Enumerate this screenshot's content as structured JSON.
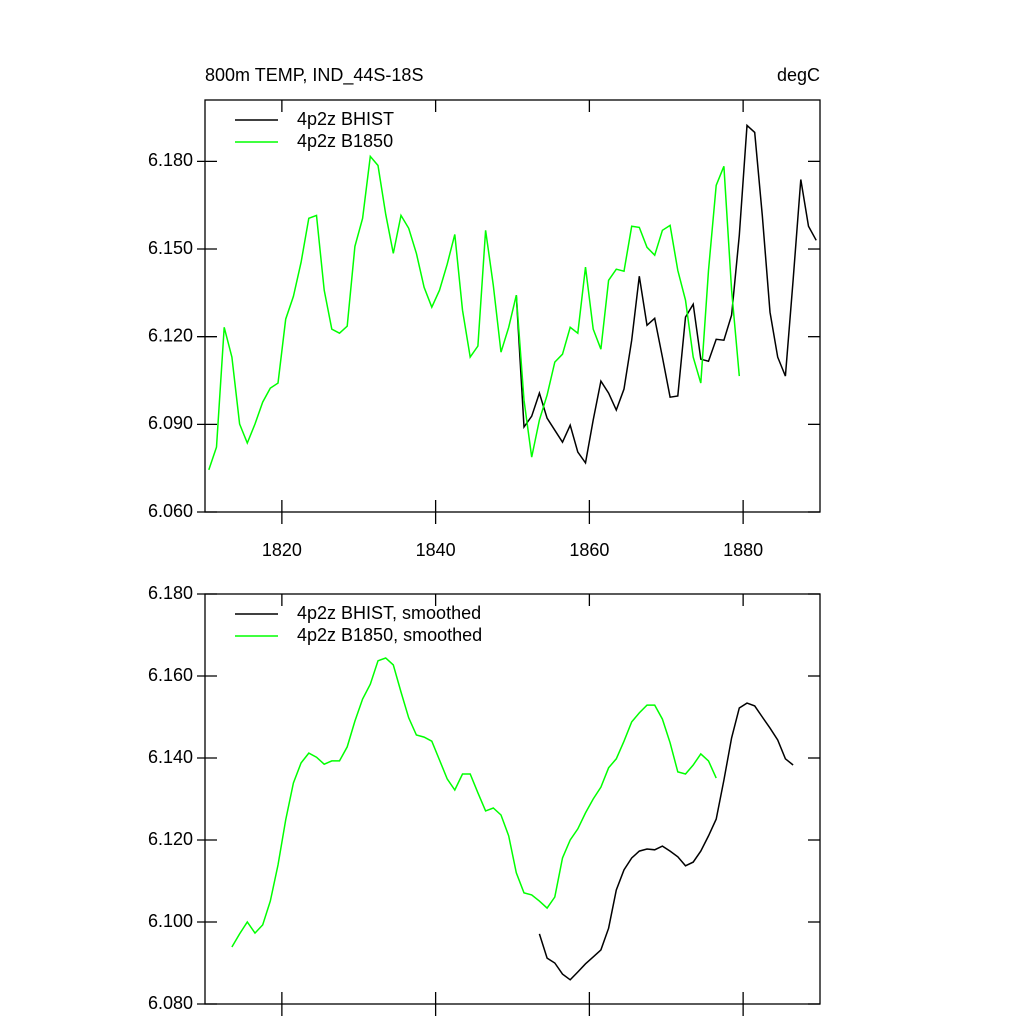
{
  "chart_data": [
    {
      "type": "line",
      "title": "800m TEMP, IND_44S-18S",
      "units": "degC",
      "xlim": [
        1810,
        1890
      ],
      "xticks": [
        1820,
        1840,
        1860,
        1880
      ],
      "ylim": [
        6.06,
        6.201
      ],
      "yticks": [
        {
          "value": 6.06,
          "label": "6.060"
        },
        {
          "value": 6.09,
          "label": "6.090"
        },
        {
          "value": 6.12,
          "label": "6.120"
        },
        {
          "value": 6.15,
          "label": "6.150"
        },
        {
          "value": 6.18,
          "label": "6.180"
        }
      ],
      "legend": "upper left",
      "series": [
        {
          "name": "4p2z BHIST",
          "color": "#000000",
          "x": [
            1850.5,
            1851.5,
            1852.5,
            1853.5,
            1854.5,
            1855.5,
            1856.5,
            1857.5,
            1858.5,
            1859.5,
            1860.5,
            1861.5,
            1862.5,
            1863.5,
            1864.5,
            1865.5,
            1866.5,
            1867.5,
            1868.5,
            1869.5,
            1870.5,
            1871.5,
            1872.5,
            1873.5,
            1874.5,
            1875.5,
            1876.5,
            1877.5,
            1878.5,
            1879.5,
            1880.5,
            1881.5,
            1882.5,
            1883.5,
            1884.5,
            1885.5,
            1886.5,
            1887.5,
            1888.5,
            1889.5
          ],
          "values": [
            6.1342,
            6.0891,
            6.0928,
            6.1007,
            6.0921,
            6.088,
            6.0839,
            6.0897,
            6.0805,
            6.0768,
            6.0915,
            6.1048,
            6.1007,
            6.0949,
            6.1021,
            6.1188,
            6.1407,
            6.1239,
            6.1263,
            6.113,
            6.0993,
            6.0997,
            6.1267,
            6.1311,
            6.1123,
            6.1116,
            6.1191,
            6.1188,
            6.1274,
            6.1547,
            6.1923,
            6.1899,
            6.1615,
            6.1284,
            6.113,
            6.1065,
            6.1393,
            6.1738,
            6.1578,
            6.153
          ]
        },
        {
          "name": "4p2z B1850",
          "color": "#00ff00",
          "x": [
            1810.5,
            1811.5,
            1812.5,
            1813.5,
            1814.5,
            1815.5,
            1816.5,
            1817.5,
            1818.5,
            1819.5,
            1820.5,
            1821.5,
            1822.5,
            1823.5,
            1824.5,
            1825.5,
            1826.5,
            1827.5,
            1828.5,
            1829.5,
            1830.5,
            1831.5,
            1832.5,
            1833.5,
            1834.5,
            1835.5,
            1836.5,
            1837.5,
            1838.5,
            1839.5,
            1840.5,
            1841.5,
            1842.5,
            1843.5,
            1844.5,
            1845.5,
            1846.5,
            1847.5,
            1848.5,
            1849.5,
            1850.5,
            1851.5,
            1852.5,
            1853.5,
            1854.5,
            1855.5,
            1856.5,
            1857.5,
            1858.5,
            1859.5,
            1860.5,
            1861.5,
            1862.5,
            1863.5,
            1864.5,
            1865.5,
            1866.5,
            1867.5,
            1868.5,
            1869.5,
            1870.5,
            1871.5,
            1872.5,
            1873.5,
            1874.5,
            1875.5,
            1876.5,
            1877.5,
            1878.5,
            1879.5
          ],
          "values": [
            6.0744,
            6.0822,
            6.1232,
            6.113,
            6.0901,
            6.0836,
            6.0901,
            6.0976,
            6.1024,
            6.1041,
            6.126,
            6.1338,
            6.1455,
            6.1605,
            6.1615,
            6.1359,
            6.1226,
            6.1212,
            6.1236,
            6.1509,
            6.1605,
            6.1817,
            6.1786,
            6.1619,
            6.1485,
            6.1615,
            6.1571,
            6.1485,
            6.1369,
            6.1301,
            6.1359,
            6.1448,
            6.155,
            6.1291,
            6.113,
            6.1168,
            6.1564,
            6.1376,
            6.1147,
            6.1232,
            6.1342,
            6.0983,
            6.0788,
            6.0915,
            6.1,
            6.1113,
            6.114,
            6.1232,
            6.1212,
            6.1438,
            6.1226,
            6.1157,
            6.1393,
            6.1431,
            6.1424,
            6.1578,
            6.1574,
            6.1506,
            6.1479,
            6.1564,
            6.1581,
            6.1427,
            6.1325,
            6.113,
            6.1041,
            6.1427,
            6.1718,
            6.1783,
            6.1359,
            6.1065
          ]
        }
      ]
    },
    {
      "type": "line",
      "xlim": [
        1810,
        1890
      ],
      "xticks": [
        1820,
        1840,
        1860,
        1880
      ],
      "ylim": [
        6.08,
        6.18
      ],
      "yticks": [
        {
          "value": 6.08,
          "label": "6.080"
        },
        {
          "value": 6.1,
          "label": "6.100"
        },
        {
          "value": 6.12,
          "label": "6.120"
        },
        {
          "value": 6.14,
          "label": "6.140"
        },
        {
          "value": 6.16,
          "label": "6.160"
        },
        {
          "value": 6.18,
          "label": "6.180"
        }
      ],
      "legend": "upper left",
      "series": [
        {
          "name": "4p2z BHIST, smoothed",
          "color": "#000000",
          "x": [
            1853.5,
            1854.5,
            1855.5,
            1856.5,
            1857.5,
            1858.5,
            1859.5,
            1860.5,
            1861.5,
            1862.5,
            1863.5,
            1864.5,
            1865.5,
            1866.5,
            1867.5,
            1868.5,
            1869.5,
            1870.5,
            1871.5,
            1872.5,
            1873.5,
            1874.5,
            1875.5,
            1876.5,
            1877.5,
            1878.5,
            1879.5,
            1880.5,
            1881.5,
            1882.5,
            1883.5,
            1884.5,
            1885.5,
            1886.5
          ],
          "values": [
            6.0971,
            6.0912,
            6.09,
            6.0873,
            6.0859,
            6.0878,
            6.0898,
            6.0915,
            6.0932,
            6.0985,
            6.1078,
            6.1127,
            6.1156,
            6.1173,
            6.1178,
            6.1176,
            6.1185,
            6.1173,
            6.1159,
            6.1137,
            6.1146,
            6.1173,
            6.121,
            6.1251,
            6.1346,
            6.1449,
            6.1522,
            6.1534,
            6.1527,
            6.15,
            6.1473,
            6.1444,
            6.1398,
            6.1383
          ]
        },
        {
          "name": "4p2z B1850, smoothed",
          "color": "#00ff00",
          "x": [
            1813.5,
            1814.5,
            1815.5,
            1816.5,
            1817.5,
            1818.5,
            1819.5,
            1820.5,
            1821.5,
            1822.5,
            1823.5,
            1824.5,
            1825.5,
            1826.5,
            1827.5,
            1828.5,
            1829.5,
            1830.5,
            1831.5,
            1832.5,
            1833.5,
            1834.5,
            1835.5,
            1836.5,
            1837.5,
            1838.5,
            1839.5,
            1840.5,
            1841.5,
            1842.5,
            1843.5,
            1844.5,
            1845.5,
            1846.5,
            1847.5,
            1848.5,
            1849.5,
            1850.5,
            1851.5,
            1852.5,
            1853.5,
            1854.5,
            1855.5,
            1856.5,
            1857.5,
            1858.5,
            1859.5,
            1860.5,
            1861.5,
            1862.5,
            1863.5,
            1864.5,
            1865.5,
            1866.5,
            1867.5,
            1868.5,
            1869.5,
            1870.5,
            1871.5,
            1872.5,
            1873.5,
            1874.5,
            1875.5,
            1876.5
          ],
          "values": [
            6.0939,
            6.0971,
            6.1,
            6.0973,
            6.0993,
            6.1051,
            6.1139,
            6.1249,
            6.1339,
            6.1388,
            6.1412,
            6.1402,
            6.1385,
            6.1393,
            6.1393,
            6.1427,
            6.149,
            6.1544,
            6.158,
            6.1637,
            6.1644,
            6.1627,
            6.1561,
            6.1498,
            6.1456,
            6.1451,
            6.1441,
            6.1395,
            6.1349,
            6.1322,
            6.1361,
            6.1361,
            6.1315,
            6.1271,
            6.1278,
            6.1261,
            6.121,
            6.112,
            6.1071,
            6.1066,
            6.1051,
            6.1034,
            6.1061,
            6.1156,
            6.12,
            6.1227,
            6.1266,
            6.13,
            6.1329,
            6.1376,
            6.1398,
            6.1441,
            6.1488,
            6.151,
            6.1529,
            6.1529,
            6.1495,
            6.1437,
            6.1366,
            6.1361,
            6.1383,
            6.141,
            6.1393,
            6.1351
          ]
        }
      ]
    }
  ]
}
